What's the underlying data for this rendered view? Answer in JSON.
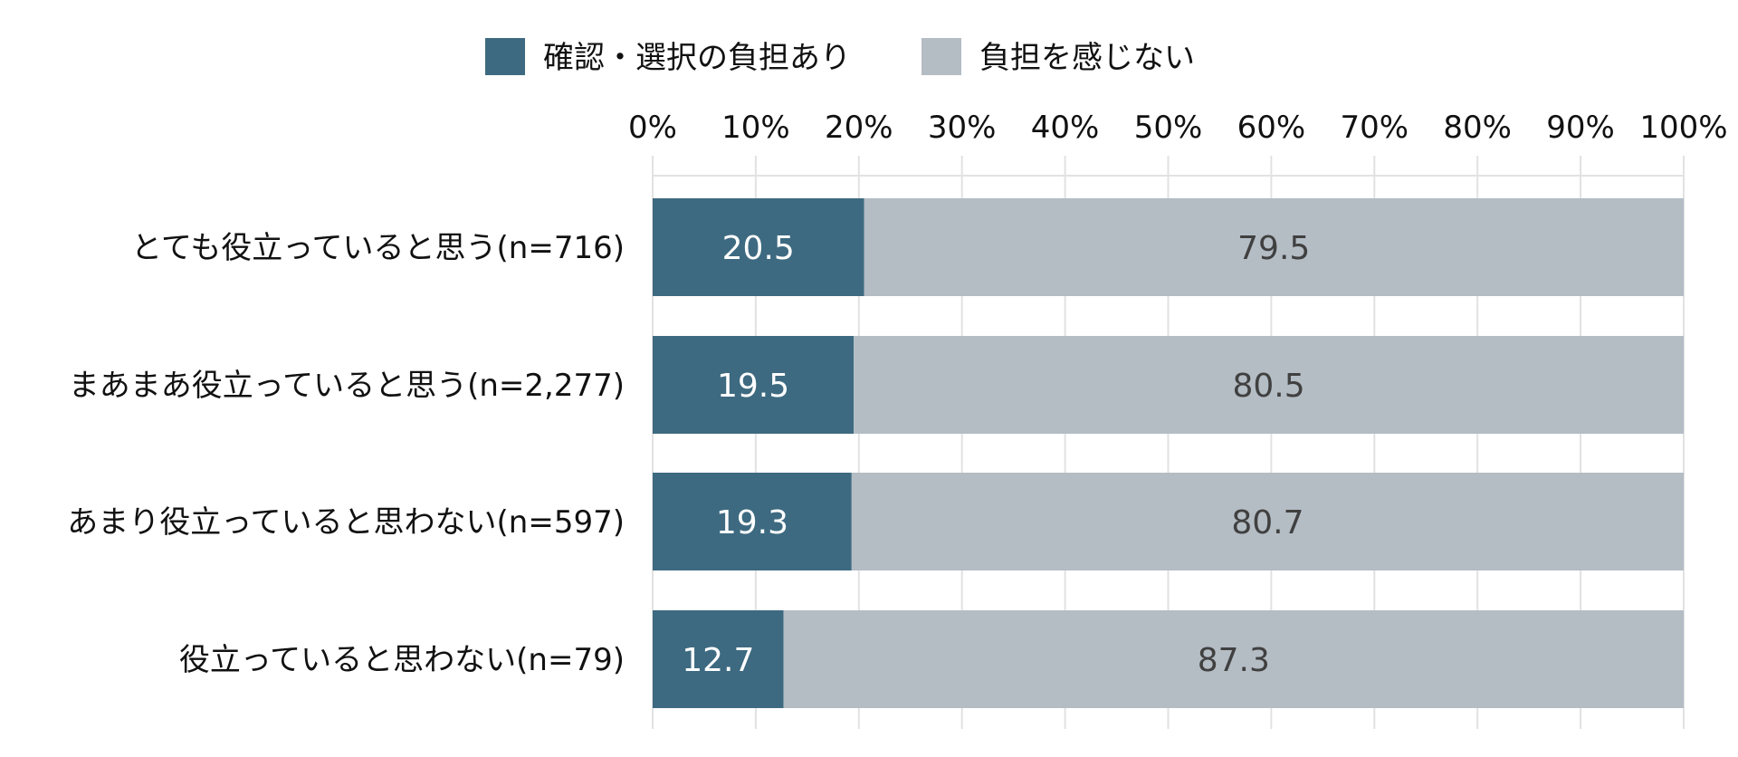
{
  "chart_data": {
    "type": "bar",
    "orientation": "horizontal",
    "stacked": true,
    "percent_scale": true,
    "categories": [
      "とても役立っていると思う(n=716)",
      "まあまあ役立っていると思う(n=2,277)",
      "あまり役立っていると思わない(n=597)",
      "役立っていると思わない(n=79)"
    ],
    "series": [
      {
        "name": "確認・選択の負担あり",
        "color": "#3d6a80",
        "label_color": "#ffffff",
        "values": [
          20.5,
          19.5,
          19.3,
          12.7
        ]
      },
      {
        "name": "負担を感じない",
        "color": "#b4bcc4",
        "label_color": "#404040",
        "values": [
          79.5,
          80.5,
          80.7,
          87.3
        ]
      }
    ],
    "data_labels": [
      [
        "20.5",
        "19.5",
        "19.3",
        "12.7"
      ],
      [
        "79.5",
        "80.5",
        "80.7",
        "87.3"
      ]
    ],
    "xlim": [
      0,
      100
    ],
    "x_ticks": [
      "0%",
      "10%",
      "20%",
      "30%",
      "40%",
      "50%",
      "60%",
      "70%",
      "80%",
      "90%",
      "100%"
    ],
    "x_axis_position": "top",
    "grid": true,
    "grid_color": "#e2e2e2",
    "legend_position": "top",
    "title": "",
    "xlabel": "",
    "ylabel": ""
  }
}
